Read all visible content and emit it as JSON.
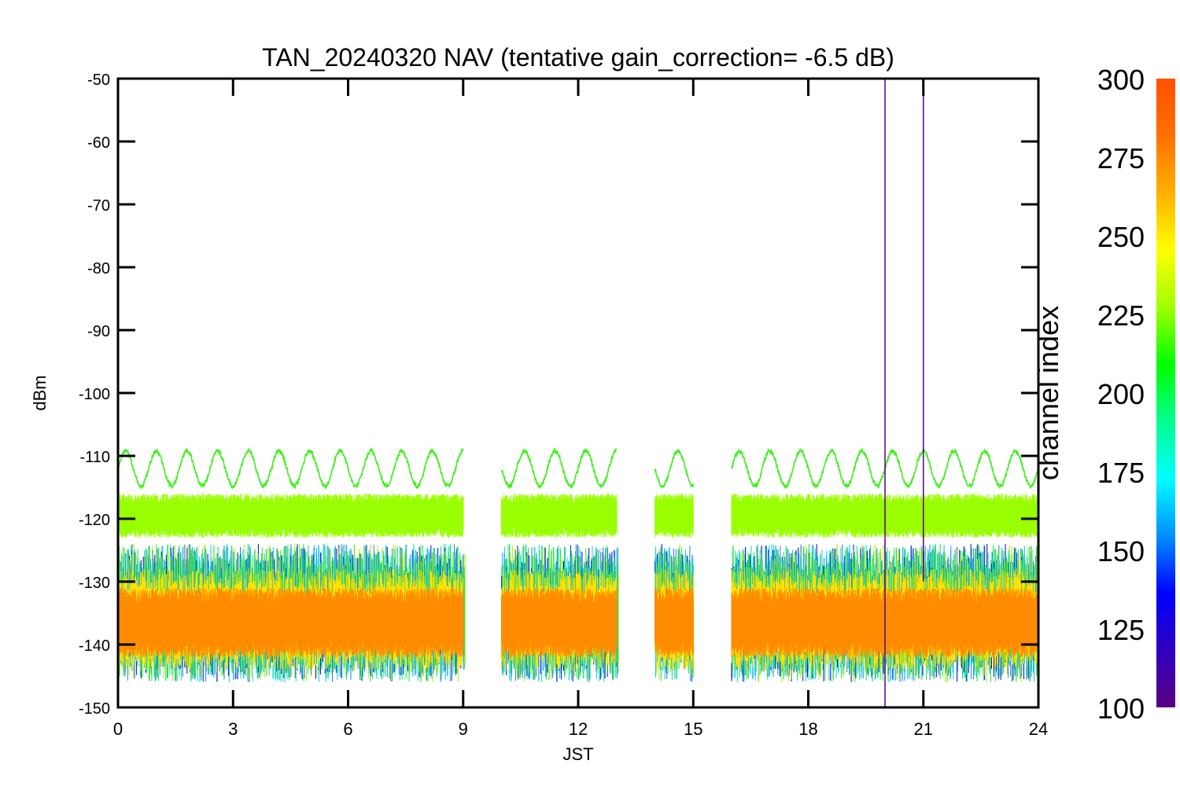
{
  "chart_data": {
    "type": "line",
    "title": "TAN_20240320 NAV (tentative gain_correction= -6.5 dB)",
    "xlabel": "JST",
    "ylabel": "dBm",
    "xlim": [
      0,
      24
    ],
    "ylim": [
      -150,
      -50
    ],
    "xticks": [
      "0",
      "3",
      "6",
      "9",
      "12",
      "15",
      "18",
      "21",
      "24"
    ],
    "yticks": [
      "-50",
      "-60",
      "-70",
      "-80",
      "-90",
      "-100",
      "-110",
      "-120",
      "-130",
      "-140",
      "-150"
    ],
    "grid": false,
    "data_gaps_jst": [
      [
        9,
        10
      ],
      [
        13,
        14
      ],
      [
        15,
        16
      ]
    ],
    "series": [
      {
        "channel_band": "upper oscillating channel (~250)",
        "color": "#44ee22",
        "description": "sinusoidal",
        "mean": -112,
        "amplitude": 2.8,
        "period_hours": 0.8,
        "noise": 0.35
      },
      {
        "channel_band": "~260",
        "color": "#99ff00",
        "mean": -119.5,
        "low": -123,
        "high": -116
      },
      {
        "channel_band": "~150-250",
        "colors": [
          "#0000cc",
          "#1a7fff",
          "#00c8ff",
          "#00e0a0",
          "#22dd44",
          "#aaee00"
        ],
        "low": -146,
        "high": -124
      },
      {
        "channel_band": "~270",
        "color": "#ffe000",
        "low": -144,
        "high": -128
      },
      {
        "channel_band": "~290",
        "color": "#ff8c00",
        "mean": -136.5,
        "low": -142,
        "high": -131
      }
    ],
    "spikes": [
      {
        "x": 20.0,
        "color": "#550088",
        "from": -150,
        "to": -50
      },
      {
        "x": 21.0,
        "color": "#550088",
        "from": -130,
        "to": -52
      }
    ],
    "colorbar": {
      "label": "channel index",
      "range": [
        100,
        300
      ],
      "ticks": [
        "300",
        "275",
        "250",
        "225",
        "200",
        "175",
        "150",
        "125",
        "100"
      ],
      "colors": [
        "#5a0080",
        "#3000c0",
        "#0000ff",
        "#0090ff",
        "#00ffff",
        "#00ff90",
        "#00ff00",
        "#a0ff00",
        "#ffff00",
        "#ffb000",
        "#ff7000",
        "#ff5000"
      ]
    }
  }
}
